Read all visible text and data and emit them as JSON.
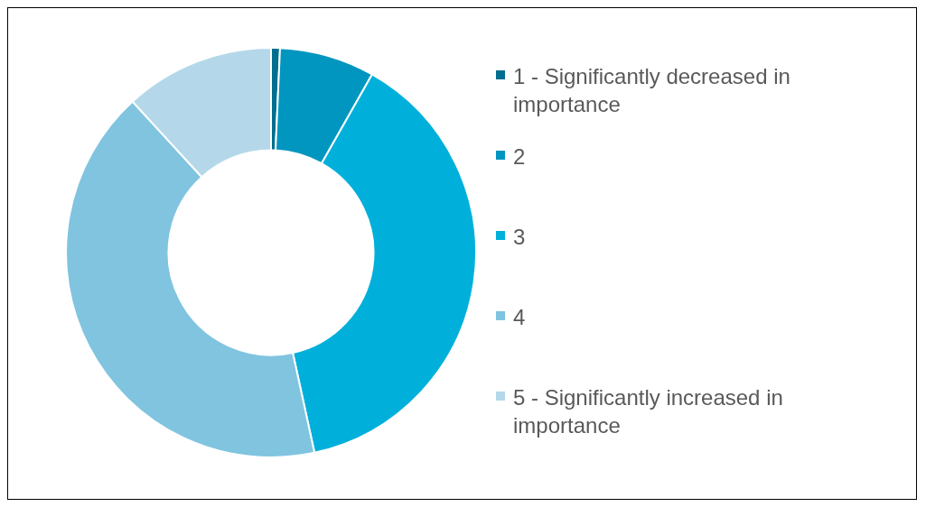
{
  "chart_data": {
    "type": "donut",
    "legend": "right",
    "categories": [
      "1 - Significantly decreased in importance",
      "2",
      "3",
      "4",
      "5 - Significantly increased in importance"
    ],
    "values": [
      0.7,
      7.5,
      38.4,
      41.6,
      11.8
    ],
    "colors": [
      "#006f8f",
      "#0096c0",
      "#00b0db",
      "#80c4e0",
      "#b4d8ea"
    ]
  }
}
